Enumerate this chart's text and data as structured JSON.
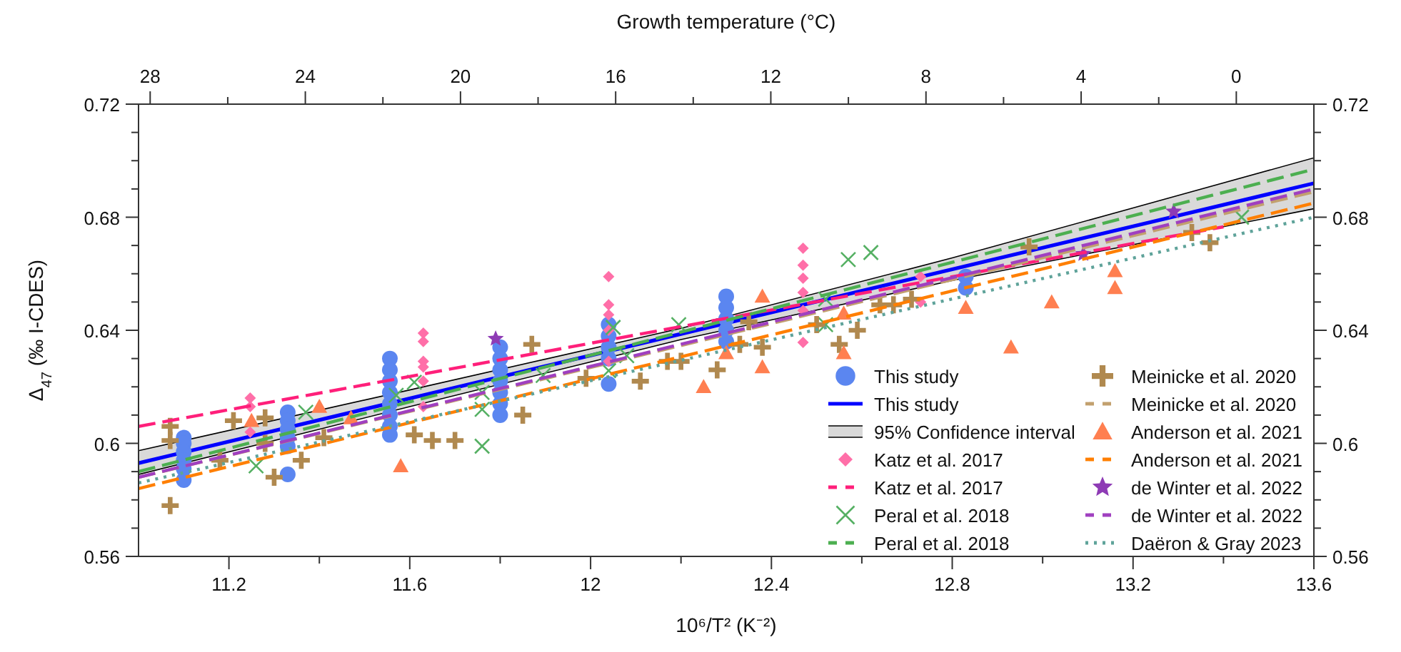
{
  "chart_data": {
    "type": "scatter",
    "xlabel": "10⁶/T² (K⁻²)",
    "ylabel": "Δ$_{47}$ (‰ I-CDES)",
    "x2label": "Growth temperature (°C)",
    "legend": "bottom right",
    "annotations": [
      "95% Confidence interval"
    ],
    "xlim": [
      11.0,
      13.6
    ],
    "ylim": [
      0.56,
      0.72
    ],
    "y2lim": [
      0.56,
      0.72
    ],
    "x2lim": [
      28.3,
      -2.0
    ],
    "xticks": [
      11.2,
      {
        "value": 11.4,
        "label": null
      },
      11.6,
      {
        "value": 11.8,
        "label": null
      },
      12,
      {
        "value": 12.2,
        "label": null
      },
      12.4,
      {
        "value": 12.6,
        "label": null
      },
      12.8,
      {
        "value": 13.0,
        "label": null
      },
      13.2,
      {
        "value": 13.4,
        "label": null
      },
      13.6
    ],
    "yticks": [
      0.56,
      {
        "value": 0.57,
        "label": null
      },
      {
        "value": 0.58,
        "label": null
      },
      {
        "value": 0.59,
        "label": null
      },
      0.6,
      {
        "value": 0.61,
        "label": null
      },
      {
        "value": 0.62,
        "label": null
      },
      {
        "value": 0.63,
        "label": null
      },
      0.64,
      {
        "value": 0.65,
        "label": null
      },
      {
        "value": 0.66,
        "label": null
      },
      {
        "value": 0.67,
        "label": null
      },
      0.68,
      {
        "value": 0.69,
        "label": null
      },
      {
        "value": 0.7,
        "label": null
      },
      {
        "value": 0.71,
        "label": null
      },
      0.72
    ],
    "y2ticks": [
      0.56,
      {
        "value": 0.57,
        "label": null
      },
      {
        "value": 0.58,
        "label": null
      },
      {
        "value": 0.59,
        "label": null
      },
      0.6,
      {
        "value": 0.61,
        "label": null
      },
      {
        "value": 0.62,
        "label": null
      },
      {
        "value": 0.63,
        "label": null
      },
      0.64,
      {
        "value": 0.65,
        "label": null
      },
      {
        "value": 0.66,
        "label": null
      },
      {
        "value": 0.67,
        "label": null
      },
      0.68,
      {
        "value": 0.69,
        "label": null
      },
      {
        "value": 0.7,
        "label": null
      },
      {
        "value": 0.71,
        "label": null
      },
      0.72
    ],
    "x2ticks": [
      28,
      {
        "value": 26,
        "label": null
      },
      24,
      {
        "value": 22,
        "label": null
      },
      20,
      {
        "value": 18,
        "label": null
      },
      16,
      {
        "value": 14,
        "label": null
      },
      12,
      {
        "value": 10,
        "label": null
      },
      8,
      {
        "value": 6,
        "label": null
      },
      4,
      {
        "value": 2,
        "label": null
      },
      0
    ],
    "series": [
      {
        "name": "This study",
        "type": "scatter",
        "marker": "circle",
        "color": "#5b86f0",
        "x": [
          11.1,
          11.1,
          11.1,
          11.1,
          11.1,
          11.1,
          11.33,
          11.33,
          11.33,
          11.33,
          11.33,
          11.33,
          11.556,
          11.556,
          11.556,
          11.556,
          11.556,
          11.556,
          11.556,
          11.556,
          11.8,
          11.8,
          11.8,
          11.8,
          11.8,
          11.8,
          11.8,
          12.04,
          12.04,
          12.04,
          12.04,
          12.04,
          12.3,
          12.3,
          12.3,
          12.3,
          12.3,
          12.83,
          12.83
        ],
        "values": [
          0.602,
          0.6,
          0.597,
          0.594,
          0.591,
          0.587,
          0.611,
          0.608,
          0.605,
          0.602,
          0.599,
          0.589,
          0.63,
          0.626,
          0.622,
          0.618,
          0.614,
          0.61,
          0.606,
          0.603,
          0.634,
          0.63,
          0.626,
          0.622,
          0.618,
          0.614,
          0.61,
          0.642,
          0.638,
          0.634,
          0.63,
          0.621,
          0.652,
          0.648,
          0.644,
          0.64,
          0.636,
          0.659,
          0.655
        ]
      },
      {
        "name": "This study",
        "type": "line",
        "line_style": "solid",
        "color": "#0000ff",
        "x": [
          11.0,
          11.6,
          12.2,
          12.8,
          13.2,
          13.6
        ],
        "values": [
          0.593,
          0.6159,
          0.6387,
          0.6616,
          0.6768,
          0.692
        ],
        "lower": [
          0.589,
          0.613,
          0.6367,
          0.6576,
          0.6703,
          0.683
        ],
        "upper": [
          0.5974,
          0.6189,
          0.6407,
          0.6656,
          0.6833,
          0.701
        ]
      },
      {
        "name": "Katz et al. 2017",
        "type": "scatter",
        "marker": "diamond",
        "color": "#ff6fa8",
        "x": [
          11.247,
          11.247,
          11.247,
          11.63,
          11.63,
          11.63,
          11.63,
          11.63,
          11.63,
          12.04,
          12.04,
          12.04,
          12.04,
          12.04,
          12.47,
          12.47,
          12.47,
          12.47,
          12.47,
          12.47,
          12.73,
          12.73
        ],
        "values": [
          0.616,
          0.613,
          0.604,
          0.639,
          0.636,
          0.629,
          0.627,
          0.622,
          0.613,
          0.659,
          0.649,
          0.6455,
          0.64,
          0.629,
          0.669,
          0.663,
          0.6584,
          0.6534,
          0.647,
          0.6357,
          0.659,
          0.65
        ]
      },
      {
        "name": "Katz et al. 2017",
        "type": "line",
        "line_style": "dashed",
        "color": "#ff1f7a",
        "x": [
          11.0,
          13.4
        ],
        "values": [
          0.606,
          0.6766
        ]
      },
      {
        "name": "Peral et al. 2018",
        "type": "scatter",
        "marker": "x",
        "color": "#55b063",
        "x": [
          11.26,
          11.37,
          11.57,
          11.61,
          11.76,
          11.76,
          11.76,
          11.895,
          12.04,
          12.05,
          12.08,
          12.195,
          12.52,
          12.52,
          12.57,
          12.62,
          13.44
        ],
        "values": [
          0.592,
          0.611,
          0.617,
          0.6216,
          0.618,
          0.612,
          0.599,
          0.624,
          0.6257,
          0.641,
          0.631,
          0.642,
          0.651,
          0.642,
          0.665,
          0.6675,
          0.68
        ]
      },
      {
        "name": "Peral et al. 2018",
        "type": "line",
        "line_style": "dashed",
        "color": "#4caf50",
        "x": [
          11.0,
          13.6
        ],
        "values": [
          0.59,
          0.697
        ]
      },
      {
        "name": "Meinicke et al. 2020",
        "type": "scatter",
        "marker": "cross",
        "color": "#b0894f",
        "x": [
          11.07,
          11.07,
          11.07,
          11.18,
          11.21,
          11.28,
          11.28,
          11.3,
          11.36,
          11.41,
          11.61,
          11.65,
          11.7,
          11.85,
          11.87,
          11.99,
          12.11,
          12.17,
          12.2,
          12.28,
          12.33,
          12.35,
          12.38,
          12.5,
          12.55,
          12.59,
          12.64,
          12.67,
          12.71,
          12.97,
          13.33,
          13.37
        ],
        "values": [
          0.606,
          0.601,
          0.578,
          0.594,
          0.608,
          0.609,
          0.6,
          0.588,
          0.594,
          0.602,
          0.603,
          0.601,
          0.601,
          0.61,
          0.635,
          0.623,
          0.622,
          0.629,
          0.629,
          0.626,
          0.635,
          0.643,
          0.634,
          0.642,
          0.635,
          0.64,
          0.649,
          0.649,
          0.651,
          0.6695,
          0.6746,
          0.671
        ]
      },
      {
        "name": "Meinicke et al. 2020",
        "type": "line",
        "line_style": "dashed",
        "color": "#c2a06e",
        "x": [
          11.0,
          13.6
        ],
        "values": [
          0.588,
          0.689
        ]
      },
      {
        "name": "Anderson et al. 2021",
        "type": "scatter",
        "marker": "triangle",
        "color": "#ff7f50",
        "x": [
          11.25,
          11.4,
          11.47,
          11.58,
          12.25,
          12.3,
          12.38,
          12.38,
          12.56,
          12.56,
          12.83,
          12.93,
          13.02,
          13.16,
          13.16
        ],
        "values": [
          0.608,
          0.613,
          0.609,
          0.592,
          0.62,
          0.632,
          0.652,
          0.627,
          0.646,
          0.632,
          0.648,
          0.634,
          0.65,
          0.661,
          0.655
        ]
      },
      {
        "name": "Anderson et al. 2021",
        "type": "line",
        "line_style": "dashed",
        "color": "#ff7f00",
        "x": [
          11.0,
          13.6
        ],
        "values": [
          0.584,
          0.685
        ]
      },
      {
        "name": "de Winter et al. 2022",
        "type": "scatter",
        "marker": "star",
        "color": "#8e3bb5",
        "x": [
          11.79,
          13.09,
          13.29
        ],
        "values": [
          0.637,
          0.667,
          0.682
        ]
      },
      {
        "name": "de Winter et al. 2022",
        "type": "line",
        "line_style": "dashed",
        "color": "#a040c0",
        "x": [
          11.0,
          13.6
        ],
        "values": [
          0.588,
          0.69
        ]
      },
      {
        "name": "Daëron & Gray 2023",
        "type": "line",
        "line_style": "dotted",
        "color": "#5fa39a",
        "x": [
          11.0,
          13.6
        ],
        "values": [
          0.586,
          0.68
        ]
      }
    ]
  }
}
